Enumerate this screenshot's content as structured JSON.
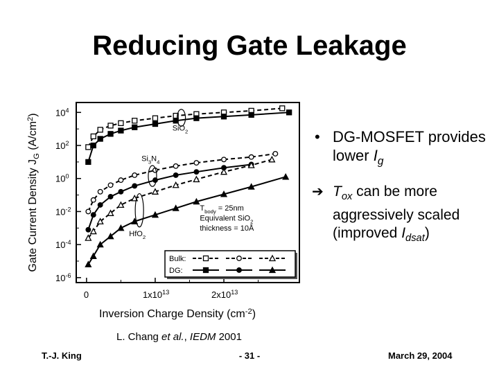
{
  "slide": {
    "title": "Reducing Gate Leakage",
    "bullets": {
      "dg_text": "DG-MOSFET provides lower ",
      "dg_var": "I",
      "dg_sub": "g",
      "tox_var": "T",
      "tox_sub": "ox",
      "tox_text": " can be more aggressively scaled (improved ",
      "idsat_var": "I",
      "idsat_sub": "dsat",
      "idsat_close": ")"
    },
    "citation": {
      "author": "L. Chang ",
      "etal": "et al.",
      "sep": ", ",
      "venue": "IEDM",
      "year": " 2001"
    },
    "footer": {
      "left": "T.-J. King",
      "center": "- 31 -",
      "right": "March 29, 2004"
    }
  },
  "chart_data": {
    "type": "line",
    "log_y": true,
    "xlabel": {
      "base": "Inversion Charge Density (cm",
      "sup": "-2",
      "close": ")"
    },
    "ylabel": {
      "base": "Gate Current Density J",
      "sub": "G",
      "mid": " (A/cm",
      "sup": "2",
      "close": ")"
    },
    "xlim": [
      -1500000000000.0,
      31000000000000.0
    ],
    "ylim_exp": [
      -6.3,
      4.6
    ],
    "x_ticks": [
      {
        "value": 0,
        "base": "0",
        "sup": ""
      },
      {
        "value": 10000000000000.0,
        "base": "1x10",
        "sup": "13"
      },
      {
        "value": 20000000000000.0,
        "base": "2x10",
        "sup": "13"
      }
    ],
    "y_ticks": [
      {
        "exp": 4,
        "base": "10",
        "sup": "4"
      },
      {
        "exp": 2,
        "base": "10",
        "sup": "2"
      },
      {
        "exp": 0,
        "base": "10",
        "sup": "0"
      },
      {
        "exp": -2,
        "base": "10",
        "sup": "-2"
      },
      {
        "exp": -4,
        "base": "10",
        "sup": "-4"
      },
      {
        "exp": -6,
        "base": "10",
        "sup": "-6"
      }
    ],
    "annotations": {
      "sio2": {
        "base": "SiO",
        "sub": "2"
      },
      "si3n4": {
        "a": "Si",
        "sub1": "3",
        "b": "N",
        "sub2": "4"
      },
      "hfo2": {
        "base": "HfO",
        "sub": "2"
      },
      "tbody": {
        "a": "T",
        "sub": "body",
        "b": " = 25nm"
      },
      "equiv": {
        "base": "Equivalent SiO",
        "sub": "2"
      },
      "thickness": "thickness = 10Å"
    },
    "legend": {
      "position": "bottom-right",
      "bulk_label": "Bulk:",
      "dg_label": "DG:"
    },
    "series": [
      {
        "dielectric": "sio2",
        "device": "bulk",
        "marker": "square",
        "filled": false,
        "dashed": true,
        "x": [
          250000000000.0,
          1000000000000.0,
          2000000000000.0,
          3500000000000.0,
          5000000000000.0,
          7000000000000.0,
          10000000000000.0,
          13000000000000.0,
          16000000000000.0,
          20000000000000.0,
          24000000000000.0,
          28500000000000.0
        ],
        "y_exp": [
          1.9,
          2.55,
          2.95,
          3.2,
          3.35,
          3.5,
          3.65,
          3.8,
          3.9,
          4.0,
          4.1,
          4.25
        ]
      },
      {
        "dielectric": "sio2",
        "device": "dg",
        "marker": "square",
        "filled": true,
        "dashed": false,
        "x": [
          250000000000.0,
          1000000000000.0,
          2000000000000.0,
          3500000000000.0,
          5000000000000.0,
          7000000000000.0,
          10000000000000.0,
          13000000000000.0,
          16000000000000.0,
          20000000000000.0,
          24000000000000.0,
          29500000000000.0
        ],
        "y_exp": [
          1.0,
          2.0,
          2.4,
          2.7,
          2.9,
          3.1,
          3.3,
          3.5,
          3.65,
          3.75,
          3.85,
          4.0
        ]
      },
      {
        "dielectric": "si3n4",
        "device": "bulk",
        "marker": "circle",
        "filled": false,
        "dashed": true,
        "x": [
          250000000000.0,
          1000000000000.0,
          2000000000000.0,
          3500000000000.0,
          5000000000000.0,
          7000000000000.0,
          10000000000000.0,
          13000000000000.0,
          16000000000000.0,
          20000000000000.0,
          24000000000000.0,
          27500000000000.0
        ],
        "y_exp": [
          -2.0,
          -1.3,
          -0.8,
          -0.4,
          -0.1,
          0.2,
          0.5,
          0.75,
          0.95,
          1.15,
          1.3,
          1.5
        ]
      },
      {
        "dielectric": "si3n4",
        "device": "dg",
        "marker": "circle",
        "filled": true,
        "dashed": false,
        "x": [
          250000000000.0,
          1000000000000.0,
          2000000000000.0,
          3500000000000.0,
          5000000000000.0,
          7000000000000.0,
          10000000000000.0,
          13000000000000.0,
          16000000000000.0,
          20000000000000.0,
          24000000000000.0
        ],
        "y_exp": [
          -3.1,
          -2.2,
          -1.6,
          -1.1,
          -0.8,
          -0.45,
          -0.1,
          0.2,
          0.4,
          0.65,
          0.85
        ]
      },
      {
        "dielectric": "hfo2",
        "device": "bulk",
        "marker": "triangle",
        "filled": false,
        "dashed": true,
        "x": [
          250000000000.0,
          1000000000000.0,
          2000000000000.0,
          3500000000000.0,
          5000000000000.0,
          7000000000000.0,
          10000000000000.0,
          13000000000000.0,
          16000000000000.0,
          20000000000000.0,
          24000000000000.0,
          27000000000000.0
        ],
        "y_exp": [
          -3.6,
          -3.2,
          -2.6,
          -2.1,
          -1.6,
          -1.2,
          -0.8,
          -0.4,
          -0.05,
          0.4,
          0.8,
          1.15
        ]
      },
      {
        "dielectric": "hfo2",
        "device": "dg",
        "marker": "triangle",
        "filled": true,
        "dashed": false,
        "x": [
          250000000000.0,
          1000000000000.0,
          2000000000000.0,
          3500000000000.0,
          5000000000000.0,
          7000000000000.0,
          10000000000000.0,
          13000000000000.0,
          16000000000000.0,
          20000000000000.0,
          24000000000000.0,
          29000000000000.0
        ],
        "y_exp": [
          -5.2,
          -4.7,
          -4.0,
          -3.5,
          -3.0,
          -2.6,
          -2.2,
          -1.8,
          -1.4,
          -0.95,
          -0.5,
          0.1
        ]
      }
    ]
  }
}
